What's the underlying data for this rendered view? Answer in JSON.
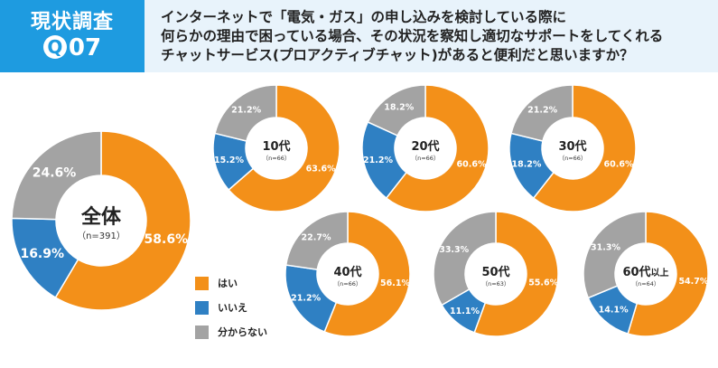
{
  "header": {
    "title": "現状調査",
    "qnum_q": "Q",
    "qnum_digits": "07",
    "question_lines": [
      "インターネットで「電気・ガス」の申し込みを検討している際に",
      "何らかの理由で困っている場合、その状況を察知し適切なサポートをしてくれる",
      "チャットサービス(プロアクティブチャット)があると便利だと思いますか？"
    ]
  },
  "colors": {
    "yes": "#f39019",
    "no": "#2f80c3",
    "unknown": "#a3a3a3",
    "header_bg": "#e8f3fb",
    "label_bg": "#1e9be0"
  },
  "legend": [
    {
      "label": "はい",
      "color": "#f39019"
    },
    {
      "label": "いいえ",
      "color": "#2f80c3"
    },
    {
      "label": "分からない",
      "color": "#a3a3a3"
    }
  ],
  "chart_data": [
    {
      "type": "pie",
      "title": "全体",
      "n_label": "（n=391）",
      "categories": [
        "はい",
        "いいえ",
        "分からない"
      ],
      "values": [
        58.6,
        16.9,
        24.6
      ],
      "value_labels": [
        "58.6%",
        "16.9%",
        "24.6%"
      ]
    },
    {
      "type": "pie",
      "title": "10代",
      "n_label": "（n=66）",
      "categories": [
        "はい",
        "いいえ",
        "分からない"
      ],
      "values": [
        63.6,
        15.2,
        21.2
      ],
      "value_labels": [
        "63.6%",
        "15.2%",
        "21.2%"
      ]
    },
    {
      "type": "pie",
      "title": "20代",
      "n_label": "（n=66）",
      "categories": [
        "はい",
        "いいえ",
        "分からない"
      ],
      "values": [
        60.6,
        21.2,
        18.2
      ],
      "value_labels": [
        "60.6%",
        "21.2%",
        "18.2%"
      ]
    },
    {
      "type": "pie",
      "title": "30代",
      "n_label": "（n=66）",
      "categories": [
        "はい",
        "いいえ",
        "分からない"
      ],
      "values": [
        60.6,
        18.2,
        21.2
      ],
      "value_labels": [
        "60.6%",
        "18.2%",
        "21.2%"
      ]
    },
    {
      "type": "pie",
      "title": "40代",
      "n_label": "（n=66）",
      "categories": [
        "はい",
        "いいえ",
        "分からない"
      ],
      "values": [
        56.1,
        21.2,
        22.7
      ],
      "value_labels": [
        "56.1%",
        "21.2%",
        "22.7%"
      ]
    },
    {
      "type": "pie",
      "title": "50代",
      "n_label": "（n=63）",
      "categories": [
        "はい",
        "いいえ",
        "分からない"
      ],
      "values": [
        55.6,
        11.1,
        33.3
      ],
      "value_labels": [
        "55.6%",
        "11.1%",
        "33.3%"
      ]
    },
    {
      "type": "pie",
      "title": "60代",
      "title_suffix": "以上",
      "n_label": "（n=64）",
      "categories": [
        "はい",
        "いいえ",
        "分からない"
      ],
      "values": [
        54.7,
        14.1,
        31.3
      ],
      "value_labels": [
        "54.7%",
        "14.1%",
        "31.3%"
      ]
    }
  ]
}
